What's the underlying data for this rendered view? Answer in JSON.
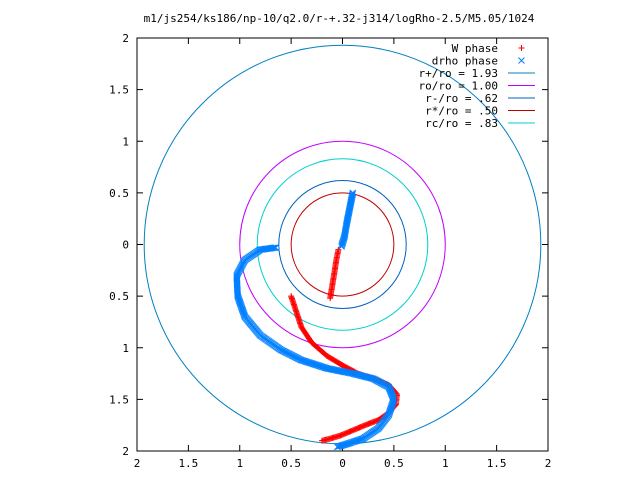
{
  "chart_data": {
    "type": "scatter",
    "title": "m1/js254/ks186/np-10/q2.0/r-+.32-j314/logRho-2.5/M5.05/1024",
    "xlabel": "",
    "ylabel": "",
    "xlim": [
      -2,
      2
    ],
    "ylim": [
      -2,
      2
    ],
    "grid": false,
    "legend_position": "top-right",
    "x_ticks": [
      -2,
      -1.5,
      -1,
      -0.5,
      0,
      0.5,
      1,
      1.5,
      2
    ],
    "y_ticks": [
      -2,
      -1.5,
      -1,
      -0.5,
      0,
      0.5,
      1,
      1.5,
      2
    ],
    "x_tick_labels": [
      "2",
      "1.5",
      "1",
      "0.5",
      "0",
      "0.5",
      "1",
      "1.5",
      "2"
    ],
    "y_tick_labels": [
      "2",
      "1.5",
      "1",
      "0.5",
      "0",
      "0.5",
      "1",
      "1.5",
      "2"
    ],
    "series": [
      {
        "name": "W phase",
        "kind": "points",
        "marker": "plus",
        "color": "#ff0000",
        "points": [
          [
            -0.12,
            -0.52
          ],
          [
            -0.1,
            -0.4
          ],
          [
            -0.08,
            -0.28
          ],
          [
            -0.06,
            -0.15
          ],
          [
            -0.04,
            -0.05
          ],
          [
            -0.5,
            -0.5
          ],
          [
            -0.45,
            -0.65
          ],
          [
            -0.4,
            -0.8
          ],
          [
            -0.3,
            -0.95
          ],
          [
            -0.15,
            -1.08
          ],
          [
            0.0,
            -1.17
          ],
          [
            0.15,
            -1.25
          ],
          [
            0.3,
            -1.3
          ],
          [
            0.45,
            -1.36
          ],
          [
            0.53,
            -1.45
          ],
          [
            0.52,
            -1.55
          ],
          [
            0.45,
            -1.63
          ],
          [
            0.35,
            -1.7
          ],
          [
            0.22,
            -1.75
          ],
          [
            0.1,
            -1.8
          ],
          [
            -0.02,
            -1.85
          ],
          [
            -0.12,
            -1.88
          ],
          [
            -0.2,
            -1.9
          ]
        ]
      },
      {
        "name": "drho phase",
        "kind": "points",
        "marker": "x",
        "color": "#0080ff",
        "points": [
          [
            0.1,
            0.5
          ],
          [
            0.07,
            0.35
          ],
          [
            0.04,
            0.2
          ],
          [
            0.02,
            0.08
          ],
          [
            -0.01,
            -0.02
          ],
          [
            -0.65,
            -0.03
          ],
          [
            -0.8,
            -0.05
          ],
          [
            -0.95,
            -0.15
          ],
          [
            -1.03,
            -0.3
          ],
          [
            -1.02,
            -0.5
          ],
          [
            -0.95,
            -0.7
          ],
          [
            -0.8,
            -0.88
          ],
          [
            -0.6,
            -1.02
          ],
          [
            -0.4,
            -1.12
          ],
          [
            -0.15,
            -1.2
          ],
          [
            0.1,
            -1.25
          ],
          [
            0.3,
            -1.3
          ],
          [
            0.45,
            -1.38
          ],
          [
            0.5,
            -1.5
          ],
          [
            0.45,
            -1.65
          ],
          [
            0.35,
            -1.78
          ],
          [
            0.2,
            -1.88
          ],
          [
            0.05,
            -1.93
          ],
          [
            -0.05,
            -1.96
          ]
        ]
      },
      {
        "name": "r+/ro = 1.93",
        "kind": "circle",
        "radius": 1.93,
        "color": "#0080c0"
      },
      {
        "name": "ro/ro = 1.00",
        "kind": "circle",
        "radius": 1.0,
        "color": "#c000ff"
      },
      {
        "name": "r-/ro = .62",
        "kind": "circle",
        "radius": 0.62,
        "color": "#0060c0"
      },
      {
        "name": "r*/ro = .50",
        "kind": "circle",
        "radius": 0.5,
        "color": "#c00000"
      },
      {
        "name": "rc/ro = .83",
        "kind": "circle",
        "radius": 0.83,
        "color": "#00d0d0"
      }
    ]
  }
}
